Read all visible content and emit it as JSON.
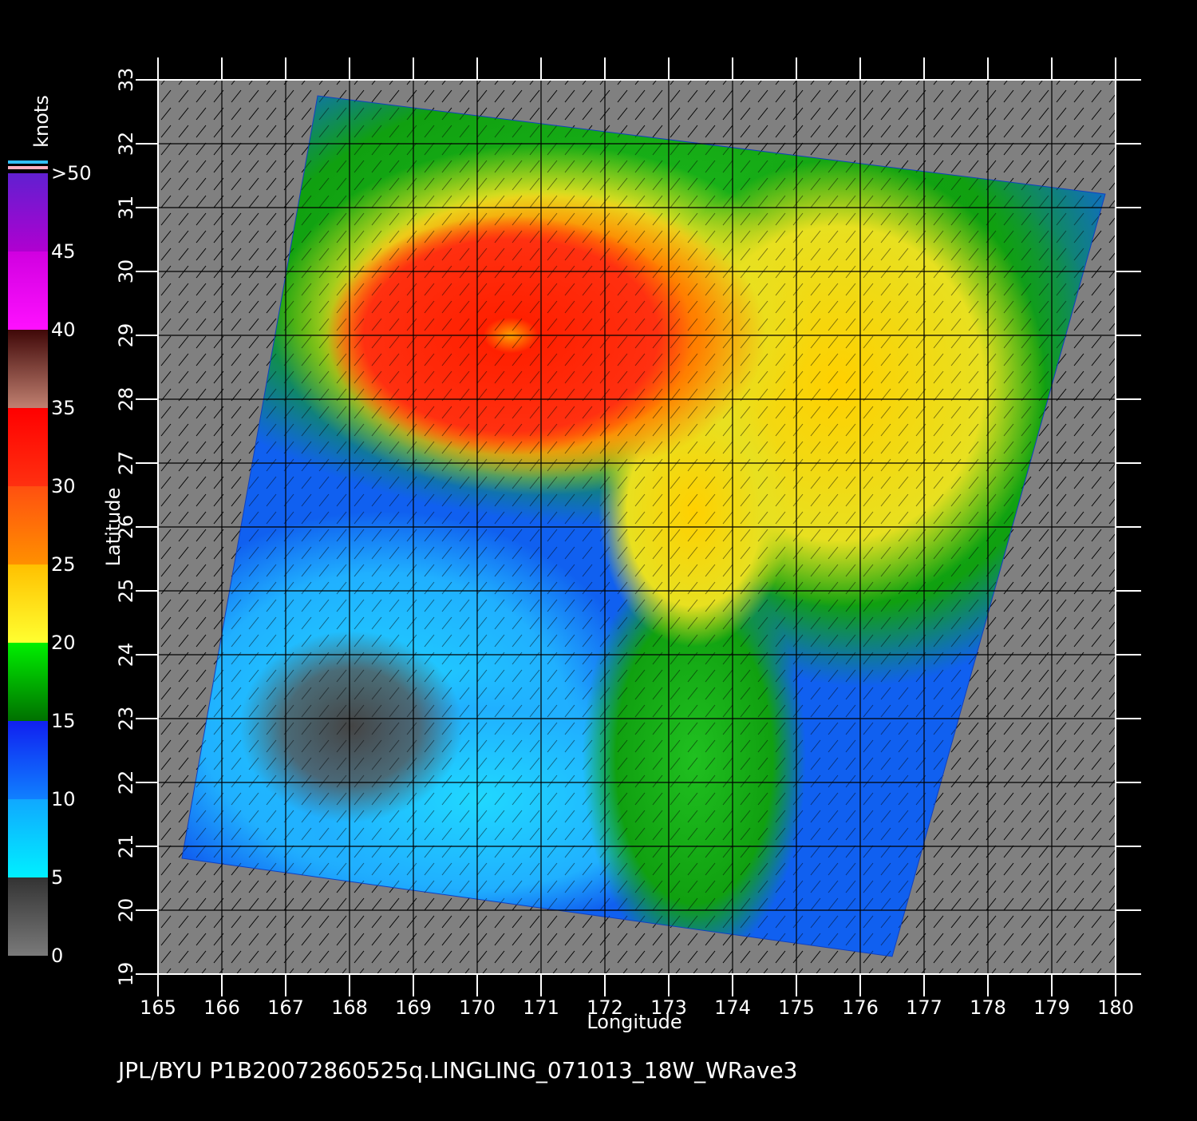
{
  "chart_data": {
    "type": "map",
    "footer": "JPL/BYU  P1B20072860525q.LINGLING_071013_18W_WRave3",
    "x_label": "Longitude",
    "y_label": "Latitude",
    "xlim": [
      165,
      180
    ],
    "xticks": [
      165,
      166,
      167,
      168,
      169,
      170,
      171,
      172,
      173,
      174,
      175,
      176,
      177,
      178,
      179,
      180
    ],
    "ylim": [
      19,
      33
    ],
    "yticks": [
      19,
      20,
      21,
      22,
      23,
      24,
      25,
      26,
      27,
      28,
      29,
      30,
      31,
      32,
      33
    ],
    "grid": true,
    "colorbar": {
      "title": "knots",
      "lim": [
        0,
        50
      ],
      "ticks": [
        0,
        5,
        10,
        15,
        20,
        25,
        30,
        35,
        40,
        {
          "value": 50,
          "label": ">50"
        }
      ],
      "tick_labels_extra": [
        45
      ],
      "bands": [
        [
          "#7a7a7a",
          "#333333"
        ],
        [
          "#00f0ff",
          "#10a8ff"
        ],
        [
          "#1080ff",
          "#1020f0"
        ],
        [
          "#007000",
          "#00f000"
        ],
        [
          "#ffff30",
          "#ffc000"
        ],
        [
          "#ff9000",
          "#ff5010"
        ],
        [
          "#ff3010",
          "#ff0000"
        ],
        [
          "#c08070",
          "#400808"
        ],
        [
          "#ff10ff",
          "#d000e0"
        ],
        [
          "#b000d0",
          "#6020d0"
        ]
      ]
    }
  }
}
